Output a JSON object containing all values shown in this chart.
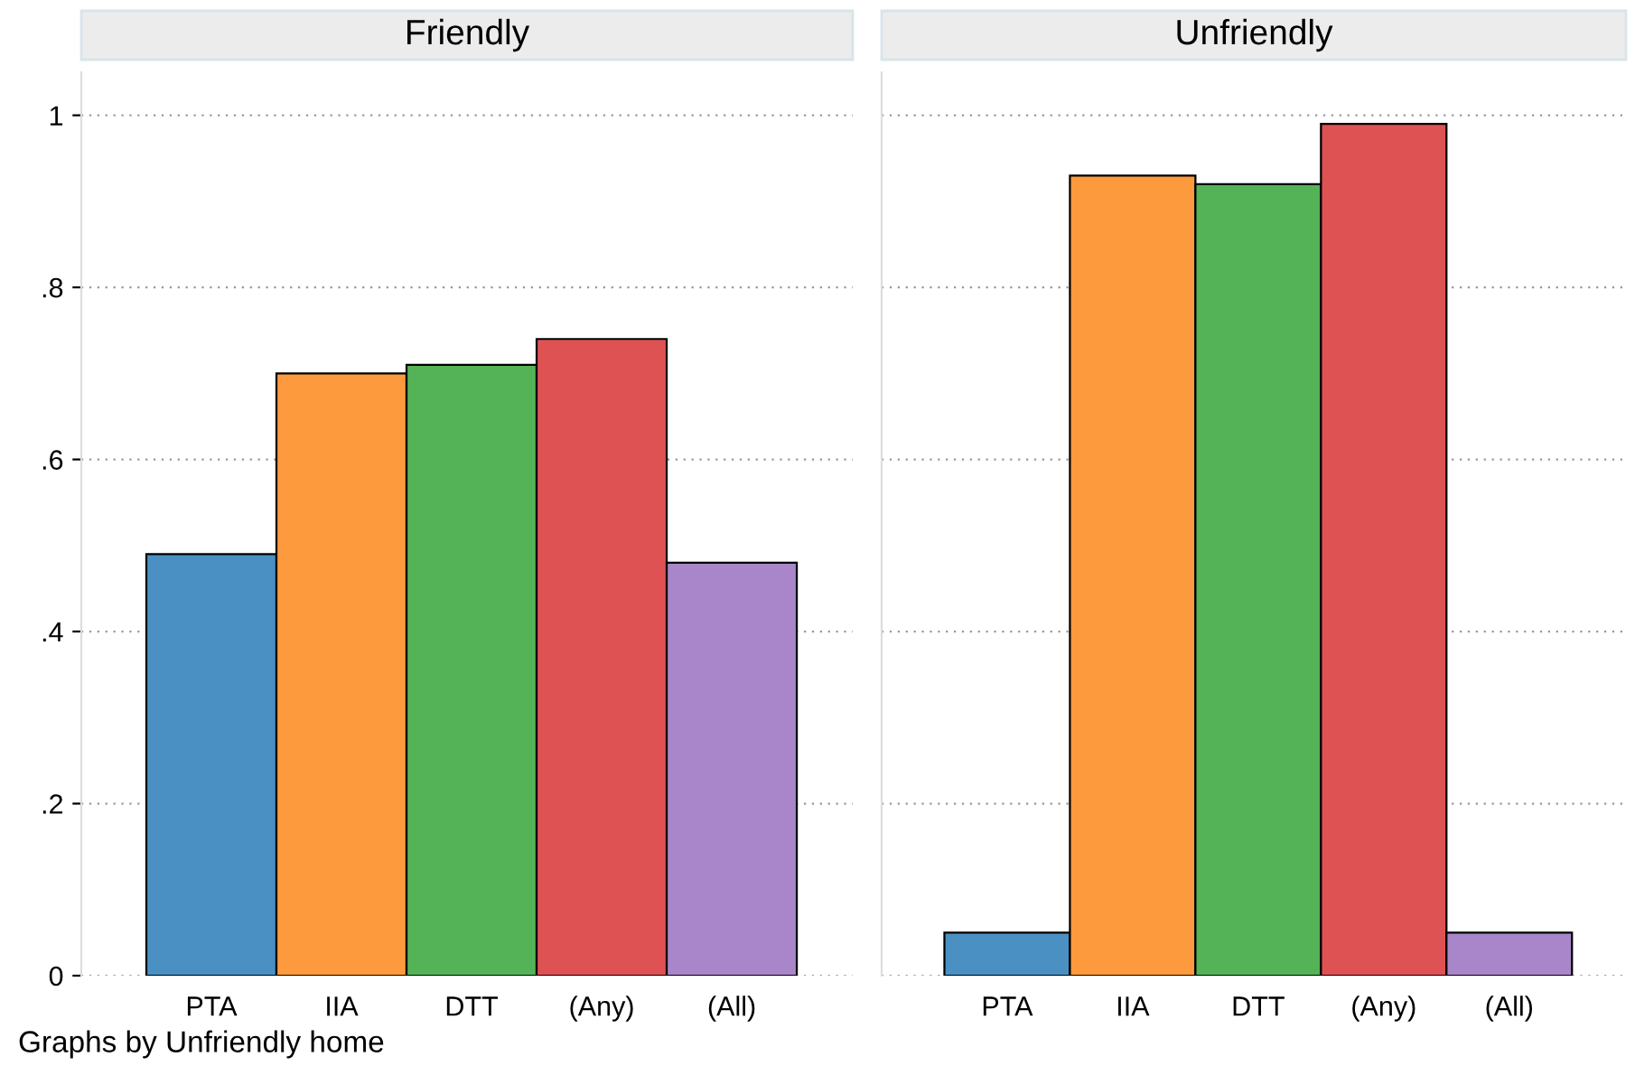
{
  "chart_data": [
    {
      "type": "bar",
      "title": "Friendly",
      "categories": [
        "PTA",
        "IIA",
        "DTT",
        "(Any)",
        "(All)"
      ],
      "values": [
        0.49,
        0.7,
        0.71,
        0.74,
        0.48
      ],
      "colors": [
        "#4a90c2",
        "#fd9a3d",
        "#55b357",
        "#de5253",
        "#a886c9"
      ],
      "ylim": [
        0,
        1.05
      ],
      "yticks": [
        0,
        {
          "value": 0.2,
          "label": ".2"
        },
        {
          "value": 0.4,
          "label": ".4"
        },
        {
          "value": 0.6,
          "label": ".6"
        },
        {
          "value": 0.8,
          "label": ".8"
        },
        1
      ],
      "grid": "y",
      "annotations": [
        "Graphs by Unfriendly home"
      ]
    },
    {
      "type": "bar",
      "title": "Unfriendly",
      "categories": [
        "PTA",
        "IIA",
        "DTT",
        "(Any)",
        "(All)"
      ],
      "values": [
        0.05,
        0.93,
        0.92,
        0.99,
        0.05
      ],
      "colors": [
        "#4a90c2",
        "#fd9a3d",
        "#55b357",
        "#de5253",
        "#a886c9"
      ],
      "ylim": [
        0,
        1.05
      ],
      "grid": "y",
      "tick_labels": "x"
    }
  ]
}
